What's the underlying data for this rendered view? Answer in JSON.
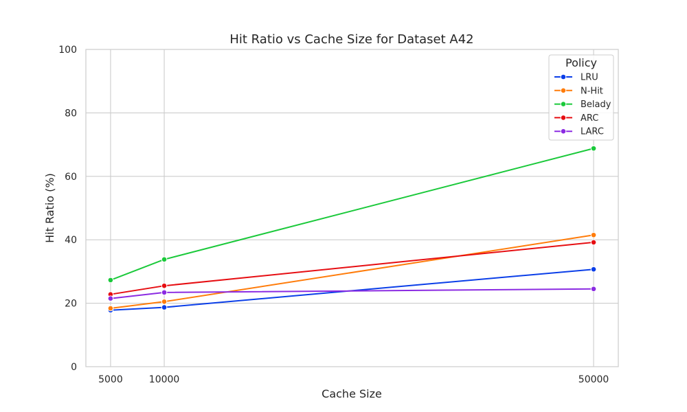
{
  "chart_data": {
    "type": "line",
    "title": "Hit Ratio vs Cache Size for Dataset A42",
    "xlabel": "Cache Size",
    "ylabel": "Hit Ratio (%)",
    "x": [
      5000,
      10000,
      50000
    ],
    "xticks": [
      5000,
      10000,
      50000
    ],
    "xlim": [
      2700,
      52300
    ],
    "ylim": [
      0,
      100
    ],
    "yticks": [
      0,
      20,
      40,
      60,
      80,
      100
    ],
    "grid": true,
    "legend": {
      "title": "Policy",
      "placement": "top-right"
    },
    "series": [
      {
        "name": "LRU",
        "color": "#0a3ee8",
        "values": [
          17.8,
          18.7,
          30.7
        ]
      },
      {
        "name": "N-Hit",
        "color": "#ff7c0a",
        "values": [
          18.4,
          20.5,
          41.5
        ]
      },
      {
        "name": "Belady",
        "color": "#1ac93a",
        "values": [
          27.3,
          33.8,
          68.8
        ]
      },
      {
        "name": "ARC",
        "color": "#e60e12",
        "values": [
          22.8,
          25.5,
          39.2
        ]
      },
      {
        "name": "LARC",
        "color": "#8b2be2",
        "values": [
          21.5,
          23.4,
          24.5
        ]
      }
    ]
  }
}
